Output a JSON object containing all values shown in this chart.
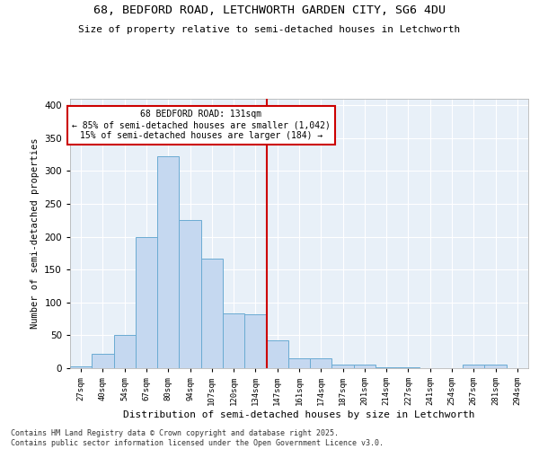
{
  "title_line1": "68, BEDFORD ROAD, LETCHWORTH GARDEN CITY, SG6 4DU",
  "title_line2": "Size of property relative to semi-detached houses in Letchworth",
  "xlabel": "Distribution of semi-detached houses by size in Letchworth",
  "ylabel": "Number of semi-detached properties",
  "bar_color": "#c5d8f0",
  "bar_edge_color": "#6aabd2",
  "bg_color": "#e8f0f8",
  "annotation_box_color": "#cc0000",
  "vline_color": "#cc0000",
  "categories": [
    "27sqm",
    "40sqm",
    "54sqm",
    "67sqm",
    "80sqm",
    "94sqm",
    "107sqm",
    "120sqm",
    "134sqm",
    "147sqm",
    "161sqm",
    "174sqm",
    "187sqm",
    "201sqm",
    "214sqm",
    "227sqm",
    "241sqm",
    "254sqm",
    "267sqm",
    "281sqm",
    "294sqm"
  ],
  "values": [
    3,
    22,
    50,
    200,
    323,
    225,
    167,
    83,
    82,
    42,
    15,
    15,
    5,
    5,
    1,
    1,
    0,
    0,
    5,
    5,
    0
  ],
  "annotation_title": "68 BEDFORD ROAD: 131sqm",
  "annotation_line2": "← 85% of semi-detached houses are smaller (1,042)",
  "annotation_line3": "15% of semi-detached houses are larger (184) →",
  "vline_position": 8.5,
  "ylim": [
    0,
    410
  ],
  "yticks": [
    0,
    50,
    100,
    150,
    200,
    250,
    300,
    350,
    400
  ],
  "footnote1": "Contains HM Land Registry data © Crown copyright and database right 2025.",
  "footnote2": "Contains public sector information licensed under the Open Government Licence v3.0."
}
